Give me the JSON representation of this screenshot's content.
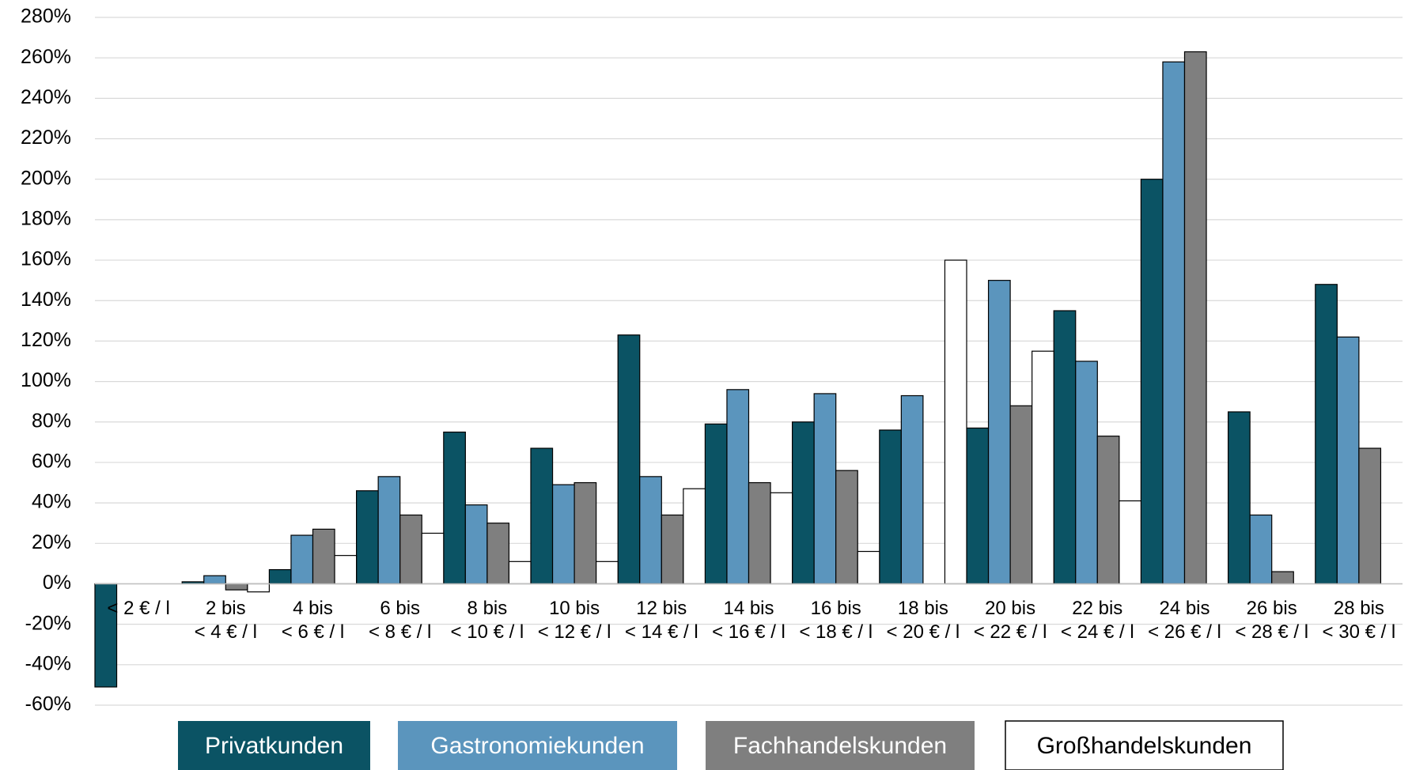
{
  "chart_data": {
    "type": "bar",
    "categories": [
      [
        "< 2 € / l"
      ],
      [
        "2 bis",
        "< 4 € / l"
      ],
      [
        "4 bis",
        "< 6 € / l"
      ],
      [
        "6 bis",
        "< 8 € / l"
      ],
      [
        "8 bis",
        "< 10 € / l"
      ],
      [
        "10 bis",
        "< 12 € / l"
      ],
      [
        "12 bis",
        "< 14 € / l"
      ],
      [
        "14 bis",
        "< 16 € / l"
      ],
      [
        "16 bis",
        "< 18 € / l"
      ],
      [
        "18 bis",
        "< 20 € / l"
      ],
      [
        "20 bis",
        "< 22 € / l"
      ],
      [
        "22 bis",
        "< 24 € / l"
      ],
      [
        "24 bis",
        "< 26 € / l"
      ],
      [
        "26 bis",
        "< 28 € / l"
      ],
      [
        "28 bis",
        "< 30 € / l"
      ]
    ],
    "series": [
      {
        "name": "Privatkunden",
        "color": "#0b5364",
        "values": [
          -51,
          1,
          7,
          46,
          75,
          67,
          123,
          79,
          80,
          76,
          77,
          135,
          200,
          85,
          148
        ]
      },
      {
        "name": "Gastronomiekunden",
        "color": "#5b95bd",
        "values": [
          null,
          4,
          24,
          53,
          39,
          49,
          53,
          96,
          94,
          93,
          150,
          110,
          258,
          34,
          122
        ]
      },
      {
        "name": "Fachhandelskunden",
        "color": "#7f7f7f",
        "values": [
          null,
          -3,
          27,
          34,
          30,
          50,
          34,
          50,
          56,
          null,
          88,
          73,
          263,
          6,
          67
        ]
      },
      {
        "name": "Großhandelskunden",
        "color": "#ffffff",
        "values": [
          null,
          -4,
          14,
          25,
          11,
          11,
          47,
          45,
          16,
          160,
          115,
          41,
          null,
          null,
          null
        ]
      }
    ],
    "ylim": [
      -60,
      280
    ],
    "yticks": [
      {
        "value": -60,
        "label": "-60%"
      },
      {
        "value": -40,
        "label": "-40%"
      },
      {
        "value": -20,
        "label": "-20%"
      },
      {
        "value": 0,
        "label": "0%"
      },
      {
        "value": 20,
        "label": "20%"
      },
      {
        "value": 40,
        "label": "40%"
      },
      {
        "value": 60,
        "label": "60%"
      },
      {
        "value": 80,
        "label": "80%"
      },
      {
        "value": 100,
        "label": "100%"
      },
      {
        "value": 120,
        "label": "120%"
      },
      {
        "value": 140,
        "label": "140%"
      },
      {
        "value": 160,
        "label": "160%"
      },
      {
        "value": 180,
        "label": "180%"
      },
      {
        "value": 200,
        "label": "200%"
      },
      {
        "value": 220,
        "label": "220%"
      },
      {
        "value": 240,
        "label": "240%"
      },
      {
        "value": 260,
        "label": "260%"
      },
      {
        "value": 280,
        "label": "280%"
      }
    ],
    "grid": true,
    "legend": "bottom"
  }
}
